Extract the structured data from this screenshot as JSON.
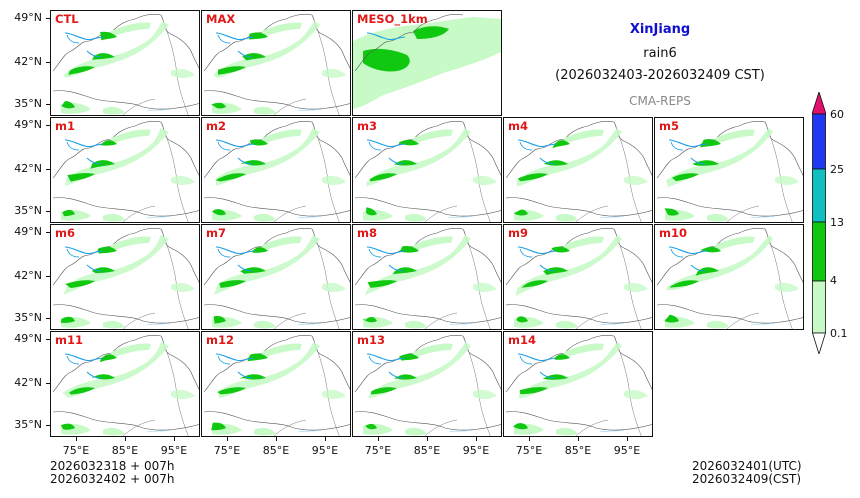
{
  "header": {
    "region": "XinJiang",
    "variable": "rain6",
    "period": "(2026032403-2026032409 CST)",
    "model": "CMA-REPS"
  },
  "panels": [
    "CTL",
    "MAX",
    "MESO_1km",
    "m1",
    "m2",
    "m3",
    "m4",
    "m5",
    "m6",
    "m7",
    "m8",
    "m9",
    "m10",
    "m11",
    "m12",
    "m13",
    "m14"
  ],
  "axes": {
    "lat_labels": [
      "49°N",
      "42°N",
      "35°N"
    ],
    "lon_labels": [
      "75°E",
      "85°E",
      "95°E"
    ]
  },
  "colorbar": {
    "levels": [
      "0.1",
      "4",
      "13",
      "25",
      "60"
    ],
    "colors": [
      "#c8fac8",
      "#10c810",
      "#10c0c0",
      "#2038f0",
      "#e0106c"
    ]
  },
  "footer": {
    "left_line1": "2026032318  +  007h",
    "left_line2": "2026032402  +  007h",
    "right_line1": "2026032401(UTC)",
    "right_line2": "2026032409(CST)"
  }
}
